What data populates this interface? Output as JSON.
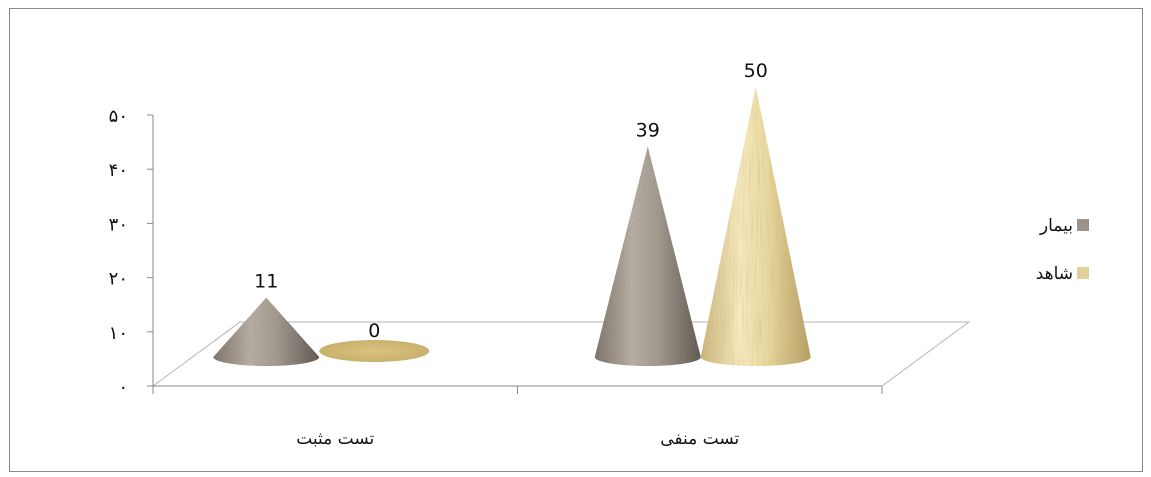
{
  "chart_data": {
    "type": "bar",
    "shape": "cone",
    "three_d": true,
    "categories": [
      "تست مثبت",
      "تست منفی"
    ],
    "series": [
      {
        "name": "بیمار",
        "values": [
          11,
          39
        ],
        "color": "#9e948b",
        "texture": "speckled-granite"
      },
      {
        "name": "شاهد",
        "values": [
          0,
          50
        ],
        "color": "#e3d29a",
        "texture": "wood-grain"
      }
    ],
    "ylim": [
      0,
      50
    ],
    "yticks": [
      "۰",
      "۱۰",
      "۲۰",
      "۳۰",
      "۴۰",
      "۵۰"
    ],
    "data_labels": [
      "11",
      "0",
      "39",
      "50"
    ],
    "title": "",
    "xlabel": "",
    "ylabel": "",
    "grid": false,
    "legend": "right"
  }
}
